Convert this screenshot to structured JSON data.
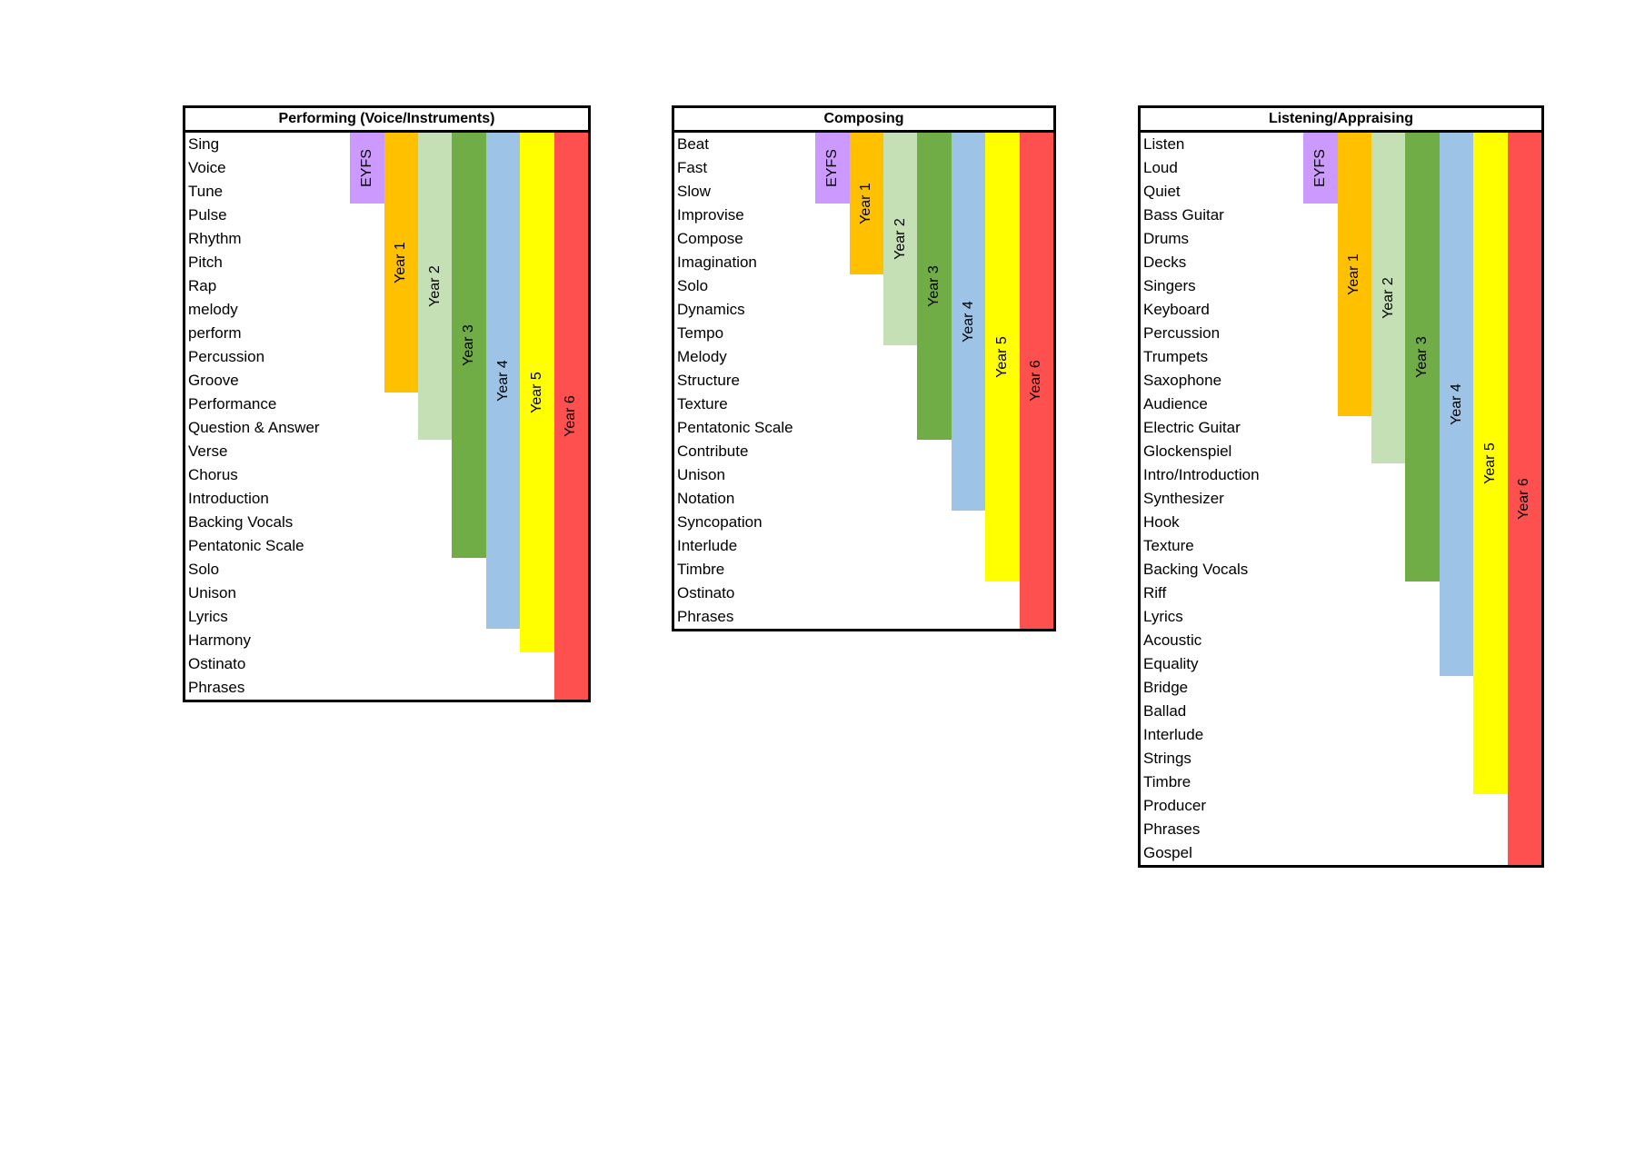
{
  "band_colors": {
    "EYFS": "#cc99ff",
    "Year 1": "#ffc000",
    "Year 2": "#c5e0b4",
    "Year 3": "#70ad47",
    "Year 4": "#9dc3e6",
    "Year 5": "#ffff00",
    "Year 6": "#ff5050"
  },
  "tables": [
    {
      "title": "Performing (Voice/Instruments)",
      "items": [
        "Sing",
        "Voice",
        "Tune",
        "Pulse",
        "Rhythm",
        "Pitch",
        "Rap",
        "melody",
        "perform",
        "Percussion",
        "Groove",
        "Performance",
        "Question & Answer",
        "Verse",
        "Chorus",
        "Introduction",
        "Backing Vocals",
        "Pentatonic Scale",
        "Solo",
        "Unison",
        "Lyrics",
        "Harmony",
        "Ostinato",
        "Phrases"
      ],
      "bands": [
        {
          "label": "EYFS",
          "rows_covered": 3
        },
        {
          "label": "Year 1",
          "rows_covered": 11
        },
        {
          "label": "Year 2",
          "rows_covered": 13
        },
        {
          "label": "Year 3",
          "rows_covered": 18
        },
        {
          "label": "Year 4",
          "rows_covered": 21
        },
        {
          "label": "Year 5",
          "rows_covered": 22
        },
        {
          "label": "Year 6",
          "rows_covered": 24
        }
      ]
    },
    {
      "title": "Composing",
      "items": [
        "Beat",
        "Fast",
        "Slow",
        "Improvise",
        "Compose",
        "Imagination",
        "Solo",
        "Dynamics",
        "Tempo",
        "Melody",
        "Structure",
        "Texture",
        "Pentatonic Scale",
        "Contribute",
        "Unison",
        "Notation",
        "Syncopation",
        "Interlude",
        "Timbre",
        "Ostinato",
        "Phrases"
      ],
      "bands": [
        {
          "label": "EYFS",
          "rows_covered": 3
        },
        {
          "label": "Year 1",
          "rows_covered": 6
        },
        {
          "label": "Year 2",
          "rows_covered": 9
        },
        {
          "label": "Year 3",
          "rows_covered": 13
        },
        {
          "label": "Year 4",
          "rows_covered": 16
        },
        {
          "label": "Year 5",
          "rows_covered": 19
        },
        {
          "label": "Year 6",
          "rows_covered": 21
        }
      ]
    },
    {
      "title": "Listening/Appraising",
      "items": [
        "Listen",
        "Loud",
        "Quiet",
        "Bass Guitar",
        "Drums",
        "Decks",
        "Singers",
        "Keyboard",
        "Percussion",
        "Trumpets",
        "Saxophone",
        "Audience",
        "Electric Guitar",
        "Glockenspiel",
        "Intro/Introduction",
        "Synthesizer",
        "Hook",
        "Texture",
        "Backing Vocals",
        "Riff",
        "Lyrics",
        "Acoustic",
        "Equality",
        "Bridge",
        "Ballad",
        "Interlude",
        "Strings",
        "Timbre",
        "Producer",
        "Phrases",
        "Gospel"
      ],
      "bands": [
        {
          "label": "EYFS",
          "rows_covered": 3
        },
        {
          "label": "Year 1",
          "rows_covered": 12
        },
        {
          "label": "Year 2",
          "rows_covered": 14
        },
        {
          "label": "Year 3",
          "rows_covered": 19
        },
        {
          "label": "Year 4",
          "rows_covered": 23
        },
        {
          "label": "Year 5",
          "rows_covered": 28
        },
        {
          "label": "Year 6",
          "rows_covered": 31
        }
      ]
    }
  ]
}
